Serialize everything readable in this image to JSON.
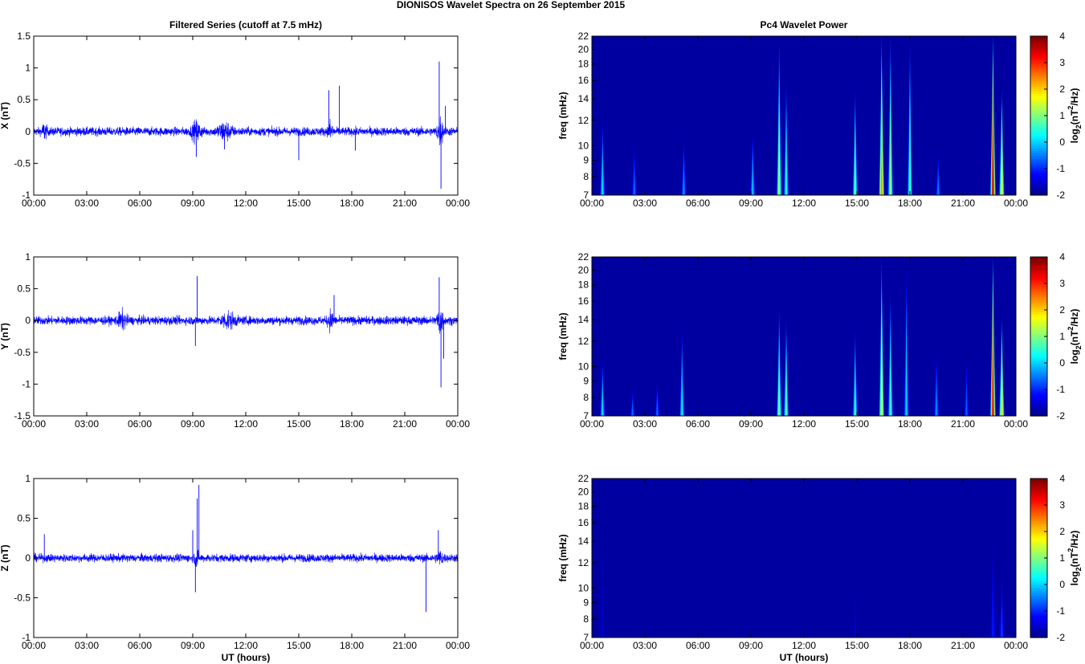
{
  "figure": {
    "title": "DIONISOS Wavelet Spectra on 26 September 2015"
  },
  "palette": {
    "trace": "#0000ff",
    "background": "#00008f",
    "axis": "#000000",
    "colormap": [
      "#00008f",
      "#0000ff",
      "#007fff",
      "#00ffff",
      "#7fff7f",
      "#ffff00",
      "#ff7f00",
      "#ff0000",
      "#7f0000"
    ]
  },
  "chart_data": [
    {
      "id": "x-series",
      "type": "line",
      "title": "Filtered Series (cutoff at 7.5 mHz)",
      "ylabel": "X (nT)",
      "xlabel": "",
      "xlim": [
        0,
        24
      ],
      "ylim": [
        -1,
        1.5
      ],
      "yticks": [
        -1,
        -0.5,
        0,
        0.5,
        1,
        1.5
      ],
      "ytick_labels": [
        "-1",
        "-0.5",
        "0",
        "0.5",
        "1",
        "1.5"
      ],
      "xtick_labels": [
        "00:00",
        "03:00",
        "06:00",
        "09:00",
        "12:00",
        "15:00",
        "18:00",
        "21:00",
        "00:00"
      ],
      "baseline_amplitude": 0.06,
      "bursts": [
        {
          "t": 0.6,
          "w": 0.4,
          "a": 0.1
        },
        {
          "t": 9.2,
          "w": 0.8,
          "a": 0.12
        },
        {
          "t": 10.8,
          "w": 1.2,
          "a": 0.12
        },
        {
          "t": 16.8,
          "w": 0.4,
          "a": 0.14
        },
        {
          "t": 23.0,
          "w": 0.5,
          "a": 0.2
        }
      ],
      "spikes": [
        {
          "t": 9.2,
          "y": -0.4
        },
        {
          "t": 10.8,
          "y": -0.28
        },
        {
          "t": 15.0,
          "y": -0.45
        },
        {
          "t": 16.7,
          "y": 0.65
        },
        {
          "t": 17.3,
          "y": 0.72
        },
        {
          "t": 18.2,
          "y": -0.3
        },
        {
          "t": 22.95,
          "y": 1.1
        },
        {
          "t": 23.05,
          "y": -0.9
        },
        {
          "t": 23.3,
          "y": 0.4
        }
      ]
    },
    {
      "id": "x-wavelet",
      "type": "heatmap",
      "title": "Pc4 Wavelet Power",
      "ylabel": "freq (mHz)",
      "xlabel": "",
      "xlim": [
        0,
        24
      ],
      "ylim": [
        7,
        22
      ],
      "yticks": [
        7,
        8,
        9,
        10,
        12,
        14,
        16,
        18,
        20,
        22
      ],
      "xtick_labels": [
        "00:00",
        "03:00",
        "06:00",
        "09:00",
        "12:00",
        "15:00",
        "18:00",
        "21:00",
        "00:00"
      ],
      "clim": [
        -2,
        4
      ],
      "colorbar_label": "log2(nT2/Hz)",
      "colorbar_ticks": [
        -2,
        -1,
        0,
        1,
        2,
        3,
        4
      ],
      "streaks": [
        {
          "t": 0.6,
          "fmax": 12,
          "p": 0.1
        },
        {
          "t": 2.4,
          "fmax": 10,
          "p": -0.6
        },
        {
          "t": 5.2,
          "fmax": 10.5,
          "p": -0.4
        },
        {
          "t": 9.1,
          "fmax": 11,
          "p": -0.1
        },
        {
          "t": 10.6,
          "fmax": 21,
          "p": 1.2
        },
        {
          "t": 11.0,
          "fmax": 16,
          "p": 0.5
        },
        {
          "t": 14.9,
          "fmax": 15,
          "p": 0.8
        },
        {
          "t": 16.4,
          "fmax": 22,
          "p": 2.4
        },
        {
          "t": 16.9,
          "fmax": 22,
          "p": 1.1
        },
        {
          "t": 18.0,
          "fmax": 21,
          "p": 0.7
        },
        {
          "t": 19.6,
          "fmax": 9.5,
          "p": -0.5
        },
        {
          "t": 22.7,
          "fmax": 22,
          "p": 3.6
        },
        {
          "t": 23.2,
          "fmax": 15,
          "p": 1.8
        }
      ]
    },
    {
      "id": "y-series",
      "type": "line",
      "title": "",
      "ylabel": "Y (nT)",
      "xlabel": "",
      "xlim": [
        0,
        24
      ],
      "ylim": [
        -1.5,
        1
      ],
      "yticks": [
        -1.5,
        -1,
        -0.5,
        0,
        0.5,
        1
      ],
      "ytick_labels": [
        "-1.5",
        "-1",
        "-0.5",
        "0",
        "0.5",
        "1"
      ],
      "xtick_labels": [
        "00:00",
        "03:00",
        "06:00",
        "09:00",
        "12:00",
        "15:00",
        "18:00",
        "21:00",
        "00:00"
      ],
      "baseline_amplitude": 0.06,
      "bursts": [
        {
          "t": 5.0,
          "w": 0.8,
          "a": 0.1
        },
        {
          "t": 11.0,
          "w": 1.2,
          "a": 0.1
        },
        {
          "t": 16.8,
          "w": 0.5,
          "a": 0.12
        },
        {
          "t": 23.0,
          "w": 0.5,
          "a": 0.2
        }
      ],
      "spikes": [
        {
          "t": 9.25,
          "y": 0.7
        },
        {
          "t": 9.15,
          "y": -0.4
        },
        {
          "t": 17.0,
          "y": 0.4
        },
        {
          "t": 22.95,
          "y": 0.68
        },
        {
          "t": 23.05,
          "y": -1.05
        },
        {
          "t": 23.2,
          "y": -0.6
        }
      ]
    },
    {
      "id": "y-wavelet",
      "type": "heatmap",
      "title": "",
      "ylabel": "freq (mHz)",
      "xlabel": "",
      "xlim": [
        0,
        24
      ],
      "ylim": [
        7,
        22
      ],
      "yticks": [
        7,
        8,
        9,
        10,
        12,
        14,
        16,
        18,
        20,
        22
      ],
      "xtick_labels": [
        "00:00",
        "03:00",
        "06:00",
        "09:00",
        "12:00",
        "15:00",
        "18:00",
        "21:00",
        "00:00"
      ],
      "clim": [
        -2,
        4
      ],
      "colorbar_label": "log2(nT2/Hz)",
      "colorbar_ticks": [
        -2,
        -1,
        0,
        1,
        2,
        3,
        4
      ],
      "streaks": [
        {
          "t": 0.6,
          "fmax": 10.5,
          "p": 0.1
        },
        {
          "t": 2.3,
          "fmax": 8.5,
          "p": -0.6
        },
        {
          "t": 3.7,
          "fmax": 9,
          "p": -0.6
        },
        {
          "t": 5.1,
          "fmax": 13,
          "p": 0.2
        },
        {
          "t": 10.6,
          "fmax": 15,
          "p": 1.0
        },
        {
          "t": 11.0,
          "fmax": 14,
          "p": 0.8
        },
        {
          "t": 14.9,
          "fmax": 13,
          "p": 0.5
        },
        {
          "t": 16.4,
          "fmax": 22,
          "p": 1.6
        },
        {
          "t": 16.9,
          "fmax": 17,
          "p": 0.6
        },
        {
          "t": 17.8,
          "fmax": 20,
          "p": 0.0
        },
        {
          "t": 19.5,
          "fmax": 11,
          "p": -0.4
        },
        {
          "t": 21.2,
          "fmax": 10.5,
          "p": -0.7
        },
        {
          "t": 22.7,
          "fmax": 22,
          "p": 3.4
        },
        {
          "t": 23.2,
          "fmax": 14,
          "p": 2.0
        }
      ]
    },
    {
      "id": "z-series",
      "type": "line",
      "title": "",
      "ylabel": "Z (nT)",
      "xlabel": "UT (hours)",
      "xlim": [
        0,
        24
      ],
      "ylim": [
        -1,
        1
      ],
      "yticks": [
        -1,
        -0.5,
        0,
        0.5,
        1
      ],
      "ytick_labels": [
        "-1",
        "-0.5",
        "0",
        "0.5",
        "1"
      ],
      "xtick_labels": [
        "00:00",
        "03:00",
        "06:00",
        "09:00",
        "12:00",
        "15:00",
        "18:00",
        "21:00",
        "00:00"
      ],
      "baseline_amplitude": 0.045,
      "bursts": [
        {
          "t": 9.2,
          "w": 0.3,
          "a": 0.12
        },
        {
          "t": 23.0,
          "w": 0.6,
          "a": 0.06
        }
      ],
      "spikes": [
        {
          "t": 0.6,
          "y": 0.3
        },
        {
          "t": 9.0,
          "y": 0.35
        },
        {
          "t": 9.15,
          "y": -0.43
        },
        {
          "t": 9.25,
          "y": 0.75
        },
        {
          "t": 9.35,
          "y": 0.92
        },
        {
          "t": 22.2,
          "y": -0.68
        },
        {
          "t": 22.9,
          "y": 0.35
        }
      ]
    },
    {
      "id": "z-wavelet",
      "type": "heatmap",
      "title": "",
      "ylabel": "freq (mHz)",
      "xlabel": "UT (hours)",
      "xlim": [
        0,
        24
      ],
      "ylim": [
        7,
        22
      ],
      "yticks": [
        7,
        8,
        9,
        10,
        12,
        14,
        16,
        18,
        20,
        22
      ],
      "xtick_labels": [
        "00:00",
        "03:00",
        "06:00",
        "09:00",
        "12:00",
        "15:00",
        "18:00",
        "21:00",
        "00:00"
      ],
      "clim": [
        -2,
        4
      ],
      "colorbar_label": "log2(nT2/Hz)",
      "colorbar_ticks": [
        -2,
        -1,
        0,
        1,
        2,
        3,
        4
      ],
      "streaks": [
        {
          "t": 0.6,
          "fmax": 16,
          "p": -1.6
        },
        {
          "t": 14.9,
          "fmax": 10,
          "p": -1.6
        },
        {
          "t": 22.7,
          "fmax": 14,
          "p": -1.1
        },
        {
          "t": 23.2,
          "fmax": 11,
          "p": -0.9
        }
      ]
    }
  ]
}
